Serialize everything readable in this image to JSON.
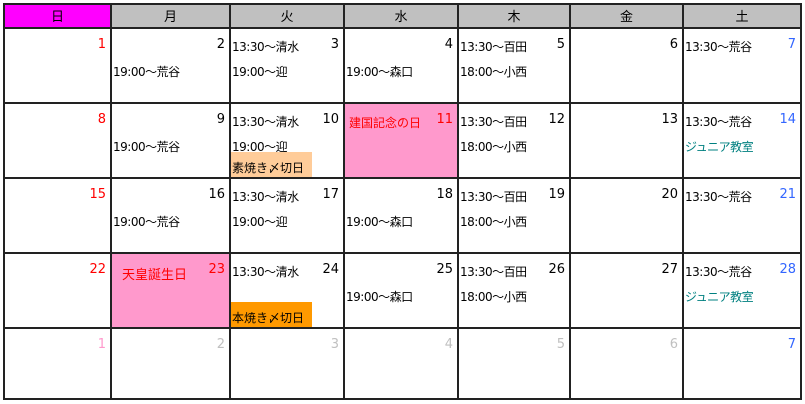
{
  "weekdays": [
    "日",
    "月",
    "火",
    "水",
    "木",
    "金",
    "土"
  ],
  "colors": {
    "sunday_header": "#ff00ff",
    "header": "#c0c0c0",
    "holiday_bg": "#ff99cc",
    "sunday_num": "#ff0000",
    "saturday_num": "#3366ff",
    "other_month_sun": "#ff99cc",
    "other_month": "#c0c0c0",
    "junior": "#008080",
    "holiday_text": "#ff0000"
  },
  "weeks": [
    [
      {
        "num": "1",
        "nc": "sun",
        "lines": []
      },
      {
        "num": "2",
        "lines": [
          {
            "t": "19:00〜荒谷",
            "s": 2
          }
        ]
      },
      {
        "num": "3",
        "lines": [
          {
            "t": "13:30〜清水",
            "s": 1
          },
          {
            "t": "19:00〜迎",
            "s": 2
          }
        ]
      },
      {
        "num": "4",
        "lines": [
          {
            "t": "19:00〜森口",
            "s": 2
          }
        ]
      },
      {
        "num": "5",
        "lines": [
          {
            "t": "13:30〜百田",
            "s": 1
          },
          {
            "t": "18:00〜小西",
            "s": 2
          }
        ]
      },
      {
        "num": "6",
        "lines": []
      },
      {
        "num": "7",
        "nc": "sat",
        "lines": [
          {
            "t": "13:30〜荒谷",
            "s": 1
          }
        ]
      }
    ],
    [
      {
        "num": "8",
        "nc": "sun",
        "lines": []
      },
      {
        "num": "9",
        "lines": [
          {
            "t": "19:00〜荒谷",
            "s": 2
          }
        ]
      },
      {
        "num": "10",
        "lines": [
          {
            "t": "13:30〜清水",
            "s": 1
          },
          {
            "t": "19:00〜迎",
            "s": 2
          }
        ],
        "tag": {
          "t": "素焼き〆切日",
          "bg": "#ffcc99"
        }
      },
      {
        "num": "11",
        "nc": "sun",
        "holiday": "建国記念の日",
        "lines": []
      },
      {
        "num": "12",
        "lines": [
          {
            "t": "13:30〜百田",
            "s": 1
          },
          {
            "t": "18:00〜小西",
            "s": 2
          }
        ]
      },
      {
        "num": "13",
        "lines": []
      },
      {
        "num": "14",
        "nc": "sat",
        "lines": [
          {
            "t": "13:30〜荒谷",
            "s": 1
          },
          {
            "t": "ジュニア教室",
            "s": 2,
            "c": "junior"
          }
        ]
      }
    ],
    [
      {
        "num": "15",
        "nc": "sun",
        "lines": []
      },
      {
        "num": "16",
        "lines": [
          {
            "t": "19:00〜荒谷",
            "s": 2
          }
        ]
      },
      {
        "num": "17",
        "lines": [
          {
            "t": "13:30〜清水",
            "s": 1
          },
          {
            "t": "19:00〜迎",
            "s": 2
          }
        ]
      },
      {
        "num": "18",
        "lines": [
          {
            "t": "19:00〜森口",
            "s": 2
          }
        ]
      },
      {
        "num": "19",
        "lines": [
          {
            "t": "13:30〜百田",
            "s": 1
          },
          {
            "t": "18:00〜小西",
            "s": 2
          }
        ]
      },
      {
        "num": "20",
        "lines": []
      },
      {
        "num": "21",
        "nc": "sat",
        "lines": [
          {
            "t": "13:30〜荒谷",
            "s": 1
          }
        ]
      }
    ],
    [
      {
        "num": "22",
        "nc": "sun",
        "lines": []
      },
      {
        "num": "23",
        "nc": "sun",
        "holiday": "天皇誕生日",
        "lines": []
      },
      {
        "num": "24",
        "lines": [
          {
            "t": "13:30〜清水",
            "s": 1
          }
        ],
        "tag": {
          "t": "本焼き〆切日",
          "bg": "#ff9900"
        }
      },
      {
        "num": "25",
        "lines": [
          {
            "t": "19:00〜森口",
            "s": 2
          }
        ]
      },
      {
        "num": "26",
        "lines": [
          {
            "t": "13:30〜百田",
            "s": 1
          },
          {
            "t": "18:00〜小西",
            "s": 2
          }
        ]
      },
      {
        "num": "27",
        "lines": []
      },
      {
        "num": "28",
        "nc": "sat",
        "lines": [
          {
            "t": "13:30〜荒谷",
            "s": 1
          },
          {
            "t": "ジュニア教室",
            "s": 2,
            "c": "junior"
          }
        ]
      }
    ],
    [
      {
        "num": "1",
        "nc": "other_month_sun",
        "lines": []
      },
      {
        "num": "2",
        "nc": "other_month",
        "lines": []
      },
      {
        "num": "3",
        "nc": "other_month",
        "lines": []
      },
      {
        "num": "4",
        "nc": "other_month",
        "lines": []
      },
      {
        "num": "5",
        "nc": "other_month",
        "lines": []
      },
      {
        "num": "6",
        "nc": "other_month",
        "lines": []
      },
      {
        "num": "7",
        "nc": "saturday_num",
        "lines": []
      }
    ]
  ]
}
